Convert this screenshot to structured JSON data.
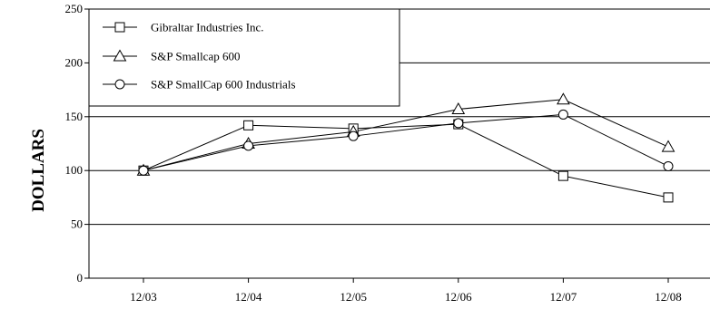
{
  "chart_data": {
    "type": "line",
    "ylabel": "DOLLARS",
    "ylim": [
      0,
      250
    ],
    "yticks": [
      0,
      50,
      100,
      150,
      200,
      250
    ],
    "categories": [
      "12/03",
      "12/04",
      "12/05",
      "12/06",
      "12/07",
      "12/08"
    ],
    "grid": "horizontal",
    "legend_position": "top-left",
    "series": [
      {
        "name": "Gibraltar Industries Inc.",
        "marker": "square",
        "values": [
          100,
          142,
          139,
          143,
          95,
          75
        ]
      },
      {
        "name": "S&P Smallcap 600",
        "marker": "triangle",
        "values": [
          100,
          125,
          136,
          157,
          166,
          122
        ]
      },
      {
        "name": "S&P SmallCap 600 Industrials",
        "marker": "circle",
        "values": [
          100,
          123,
          132,
          144,
          152,
          104
        ]
      }
    ]
  }
}
